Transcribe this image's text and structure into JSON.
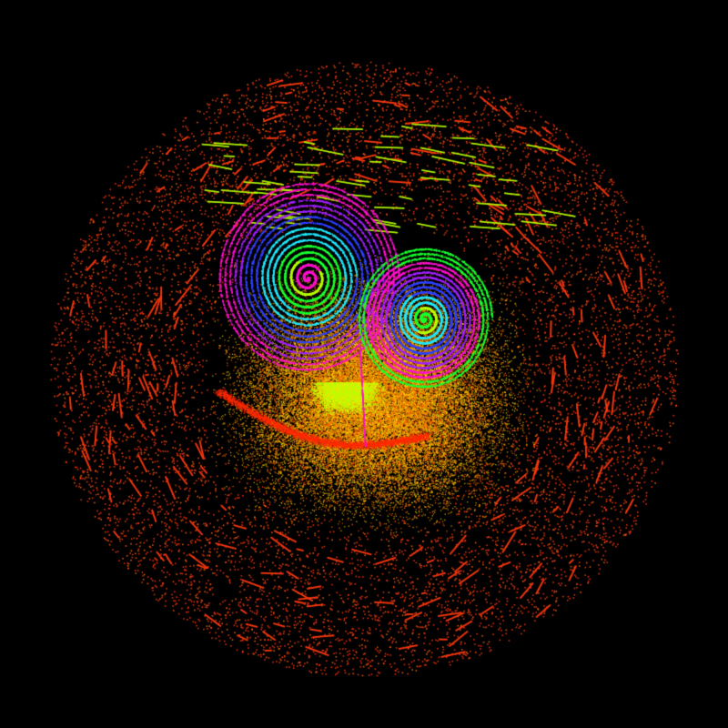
{
  "scene": {
    "subject": "strange-attractor-particle-cloud",
    "background_color": "#000000",
    "palette": {
      "outer_halo": "#ff3a10",
      "mid_cloud_orange": "#ff8c00",
      "mid_cloud_yellow": "#ffe000",
      "inner_lime": "#b8ff00",
      "inner_green": "#18ff30",
      "inner_cyan": "#20e8ff",
      "inner_blue": "#3040ff",
      "inner_violet": "#a020ff",
      "core_magenta": "#ff10d0"
    },
    "lobes": [
      {
        "name": "left-lobe",
        "core_color": "#ff10d0"
      },
      {
        "name": "right-lobe",
        "core_color": "#18ff30"
      }
    ]
  }
}
